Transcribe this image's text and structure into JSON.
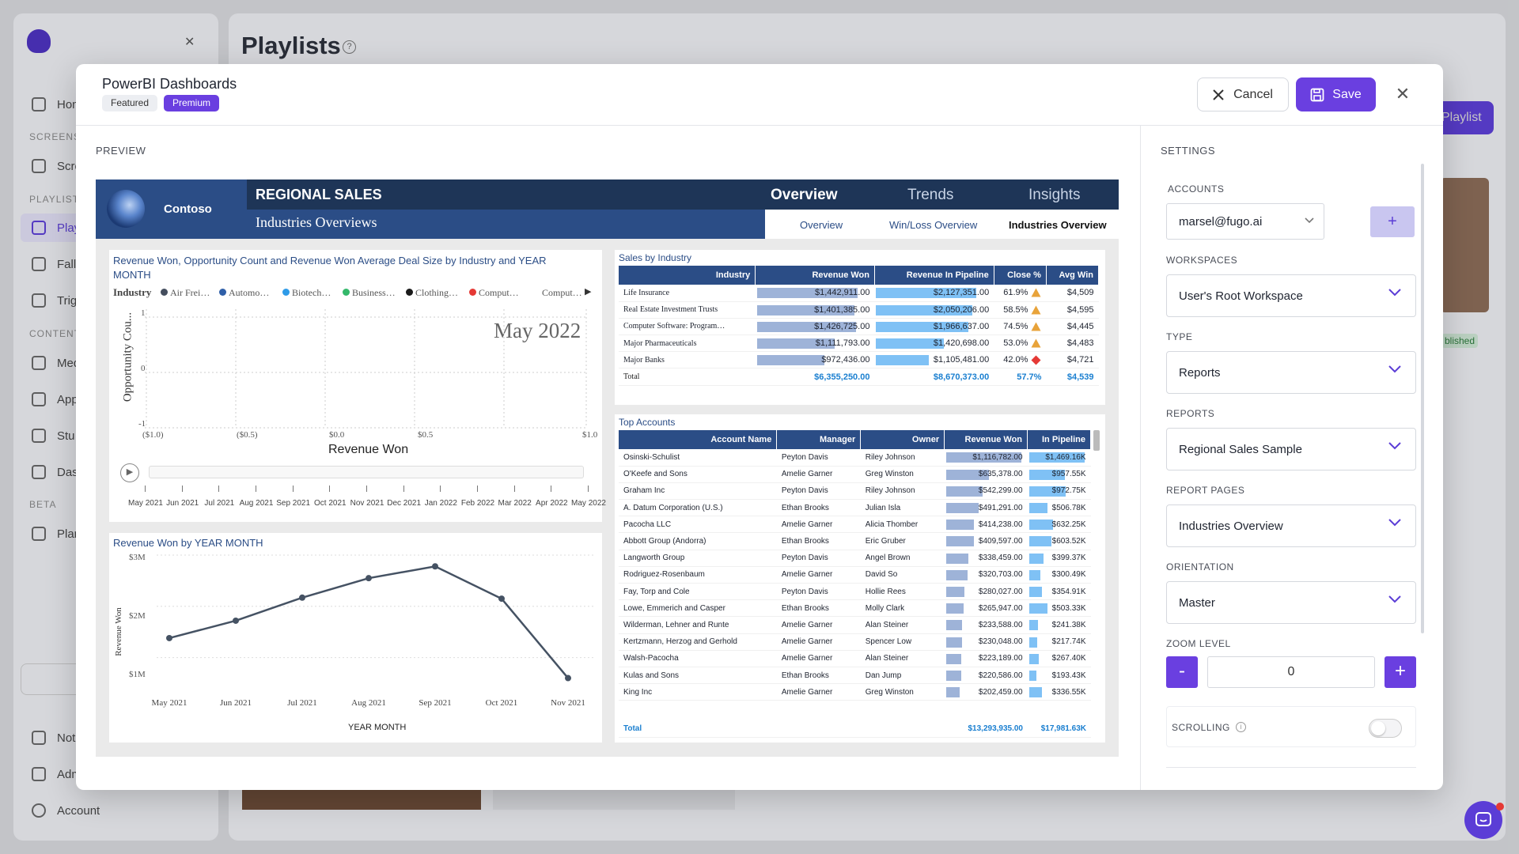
{
  "background": {
    "page_title": "Playlists",
    "help_glyph": "?",
    "nav": {
      "home": "Hom",
      "screens_section": "SCREENS",
      "screens": "Scre",
      "playlists_section": "PLAYLIST",
      "playlists": "Play",
      "fallback": "Fall",
      "triggers": "Trig",
      "content_section": "CONTENT",
      "media": "Med",
      "apps": "App",
      "studio": "Stu",
      "dashboards": "Das",
      "beta_section": "BETA",
      "planner": "Plan",
      "notifications": "Noti",
      "admin": "Adm",
      "account": "Account"
    },
    "add_button": "Playlist",
    "published_badge": "blished"
  },
  "modal": {
    "title": "PowerBI Dashboards",
    "badges": [
      "Featured",
      "Premium"
    ],
    "cancel_label": "Cancel",
    "save_label": "Save",
    "preview_label": "PREVIEW",
    "settings_label": "SETTINGS"
  },
  "report": {
    "logo_text": "Contoso",
    "title": "REGIONAL SALES",
    "subtitle": "Industries Overviews",
    "nav": [
      "Overview",
      "Trends",
      "Insights"
    ],
    "subnav": [
      "Overview",
      "Win/Loss Overview",
      "Industries Overview"
    ],
    "scatter": {
      "title": "Revenue Won, Opportunity Count and Revenue Won Average Deal Size by Industry and YEAR MONTH",
      "legend_label": "Industry",
      "legend": [
        {
          "name": "Air Frei…",
          "color": "#444e5e"
        },
        {
          "name": "Automo…",
          "color": "#2f5fa8"
        },
        {
          "name": "Biotech…",
          "color": "#2e9be8"
        },
        {
          "name": "Business…",
          "color": "#34b86a"
        },
        {
          "name": "Clothing…",
          "color": "#1a1a1a"
        },
        {
          "name": "Comput…",
          "color": "#e53935"
        },
        {
          "name": "Comput…",
          "color": "#ffffff"
        }
      ],
      "legend_more": "▶",
      "watermark": "May 2022",
      "ylabel": "Opportunity Cou...",
      "xlabel": "Revenue Won",
      "yticks": [
        "1",
        "0",
        "-1"
      ],
      "xticks": [
        "($1.0)",
        "($0.5)",
        "$0.0",
        "$0.5",
        "$1.0"
      ],
      "play_glyph": "▶",
      "timeline": [
        "May 2021",
        "Jun 2021",
        "Jul 2021",
        "Aug 2021",
        "Sep 2021",
        "Oct 2021",
        "Nov 2021",
        "Dec 2021",
        "Jan 2022",
        "Feb 2022",
        "Mar 2022",
        "Apr 2022",
        "May 2022"
      ]
    },
    "sales_by_industry": {
      "title": "Sales by Industry",
      "headers": [
        "Industry",
        "Revenue Won",
        "Revenue In Pipeline",
        "Close %",
        "Avg Win"
      ],
      "sort_glyph": "▼",
      "rows": [
        {
          "industry": "Life Insurance",
          "won": "$1,442,911.00",
          "won_pct": 1.0,
          "pipe": "$2,127,351.00",
          "pipe_pct": 1.0,
          "close": "61.9%",
          "flag": "warn",
          "avg": "$4,509"
        },
        {
          "industry": "Real Estate Investment Trusts",
          "won": "$1,401,385.00",
          "won_pct": 0.97,
          "pipe": "$2,050,206.00",
          "pipe_pct": 0.96,
          "close": "58.5%",
          "flag": "warn",
          "avg": "$4,595"
        },
        {
          "industry": "Computer Software: Program…",
          "won": "$1,426,725.00",
          "won_pct": 0.99,
          "pipe": "$1,966,637.00",
          "pipe_pct": 0.92,
          "close": "74.5%",
          "flag": "warn",
          "avg": "$4,445"
        },
        {
          "industry": "Major Pharmaceuticals",
          "won": "$1,111,793.00",
          "won_pct": 0.77,
          "pipe": "$1,420,698.00",
          "pipe_pct": 0.67,
          "close": "53.0%",
          "flag": "warn",
          "avg": "$4,483"
        },
        {
          "industry": "Major Banks",
          "won": "$972,436.00",
          "won_pct": 0.67,
          "pipe": "$1,105,481.00",
          "pipe_pct": 0.52,
          "close": "42.0%",
          "flag": "bad",
          "avg": "$4,721"
        }
      ],
      "total": {
        "label": "Total",
        "won": "$6,355,250.00",
        "pipe": "$8,670,373.00",
        "close": "57.7%",
        "avg": "$4,539"
      }
    },
    "top_accounts": {
      "title": "Top Accounts",
      "headers": [
        "Account Name",
        "Manager",
        "Owner",
        "Revenue Won",
        "In Pipeline"
      ],
      "sort_glyph": "▼",
      "rows": [
        {
          "name": "Osinski-Schulist",
          "mgr": "Peyton Davis",
          "owner": "Riley Johnson",
          "won": "$1,116,782.00",
          "won_pct": 1.0,
          "pipe": "$1,469.16K",
          "pipe_pct": 1.0
        },
        {
          "name": "O'Keefe and Sons",
          "mgr": "Amelie Garner",
          "owner": "Greg Winston",
          "won": "$635,378.00",
          "won_pct": 0.57,
          "pipe": "$957.55K",
          "pipe_pct": 0.65
        },
        {
          "name": "Graham Inc",
          "mgr": "Peyton Davis",
          "owner": "Riley Johnson",
          "won": "$542,299.00",
          "won_pct": 0.49,
          "pipe": "$972.75K",
          "pipe_pct": 0.66
        },
        {
          "name": "A. Datum Corporation (U.S.)",
          "mgr": "Ethan Brooks",
          "owner": "Julian Isla",
          "won": "$491,291.00",
          "won_pct": 0.44,
          "pipe": "$506.78K",
          "pipe_pct": 0.34
        },
        {
          "name": "Pacocha LLC",
          "mgr": "Amelie Garner",
          "owner": "Alicia Thomber",
          "won": "$414,238.00",
          "won_pct": 0.37,
          "pipe": "$632.25K",
          "pipe_pct": 0.43
        },
        {
          "name": "Abbott Group (Andorra)",
          "mgr": "Ethan Brooks",
          "owner": "Eric Gruber",
          "won": "$409,597.00",
          "won_pct": 0.37,
          "pipe": "$603.52K",
          "pipe_pct": 0.41
        },
        {
          "name": "Langworth Group",
          "mgr": "Peyton Davis",
          "owner": "Angel Brown",
          "won": "$338,459.00",
          "won_pct": 0.3,
          "pipe": "$399.37K",
          "pipe_pct": 0.27
        },
        {
          "name": "Rodriguez-Rosenbaum",
          "mgr": "Amelie Garner",
          "owner": "David So",
          "won": "$320,703.00",
          "won_pct": 0.29,
          "pipe": "$300.49K",
          "pipe_pct": 0.2
        },
        {
          "name": "Fay, Torp and Cole",
          "mgr": "Peyton Davis",
          "owner": "Hollie Rees",
          "won": "$280,027.00",
          "won_pct": 0.25,
          "pipe": "$354.91K",
          "pipe_pct": 0.24
        },
        {
          "name": "Lowe, Emmerich and Casper",
          "mgr": "Ethan Brooks",
          "owner": "Molly Clark",
          "won": "$265,947.00",
          "won_pct": 0.24,
          "pipe": "$503.33K",
          "pipe_pct": 0.34
        },
        {
          "name": "Wilderman, Lehner and Runte",
          "mgr": "Amelie Garner",
          "owner": "Alan Steiner",
          "won": "$233,588.00",
          "won_pct": 0.21,
          "pipe": "$241.38K",
          "pipe_pct": 0.16
        },
        {
          "name": "Kertzmann, Herzog and Gerhold",
          "mgr": "Amelie Garner",
          "owner": "Spencer Low",
          "won": "$230,048.00",
          "won_pct": 0.21,
          "pipe": "$217.74K",
          "pipe_pct": 0.15
        },
        {
          "name": "Walsh-Pacocha",
          "mgr": "Amelie Garner",
          "owner": "Alan Steiner",
          "won": "$223,189.00",
          "won_pct": 0.2,
          "pipe": "$267.40K",
          "pipe_pct": 0.18
        },
        {
          "name": "Kulas and Sons",
          "mgr": "Ethan Brooks",
          "owner": "Dan Jump",
          "won": "$220,586.00",
          "won_pct": 0.2,
          "pipe": "$193.43K",
          "pipe_pct": 0.13
        },
        {
          "name": "King Inc",
          "mgr": "Amelie Garner",
          "owner": "Greg Winston",
          "won": "$202,459.00",
          "won_pct": 0.18,
          "pipe": "$336.55K",
          "pipe_pct": 0.23
        }
      ],
      "total": {
        "label": "Total",
        "won": "$13,293,935.00",
        "pipe": "$17,981.63K"
      }
    },
    "line_chart": {
      "title": "Revenue Won by YEAR MONTH",
      "ylabel": "Revenue Won",
      "xlabel": "YEAR MONTH",
      "yticks": [
        "$3M",
        "$2M",
        "$1M"
      ]
    }
  },
  "chart_data": {
    "type": "line",
    "title": "Revenue Won by YEAR MONTH",
    "xlabel": "YEAR MONTH",
    "ylabel": "Revenue Won",
    "categories": [
      "May 2021",
      "Jun 2021",
      "Jul 2021",
      "Aug 2021",
      "Sep 2021",
      "Oct 2021",
      "Nov 2021"
    ],
    "values": [
      1.38,
      1.72,
      2.17,
      2.55,
      2.78,
      2.15,
      0.6
    ],
    "ylim": [
      0.5,
      3.0
    ],
    "units": "$M",
    "color": "#455263"
  },
  "settings": {
    "accounts_label": "ACCOUNTS",
    "account_value": "marsel@fugo.ai",
    "add_glyph": "+",
    "workspaces_label": "WORKSPACES",
    "workspace_value": "User's Root Workspace",
    "type_label": "TYPE",
    "type_value": "Reports",
    "reports_label": "REPORTS",
    "report_value": "Regional Sales Sample",
    "pages_label": "REPORT PAGES",
    "page_value": "Industries Overview",
    "orientation_label": "ORIENTATION",
    "orientation_value": "Master",
    "zoom_label": "ZOOM LEVEL",
    "zoom_value": "0",
    "zoom_minus": "-",
    "zoom_plus": "+",
    "scrolling_label": "SCROLLING",
    "info_glyph": "i",
    "scrolling_on": false
  },
  "colors": {
    "accent": "#6a3fe0",
    "report_navy": "#1e3557",
    "report_blue": "#2b4d86"
  }
}
